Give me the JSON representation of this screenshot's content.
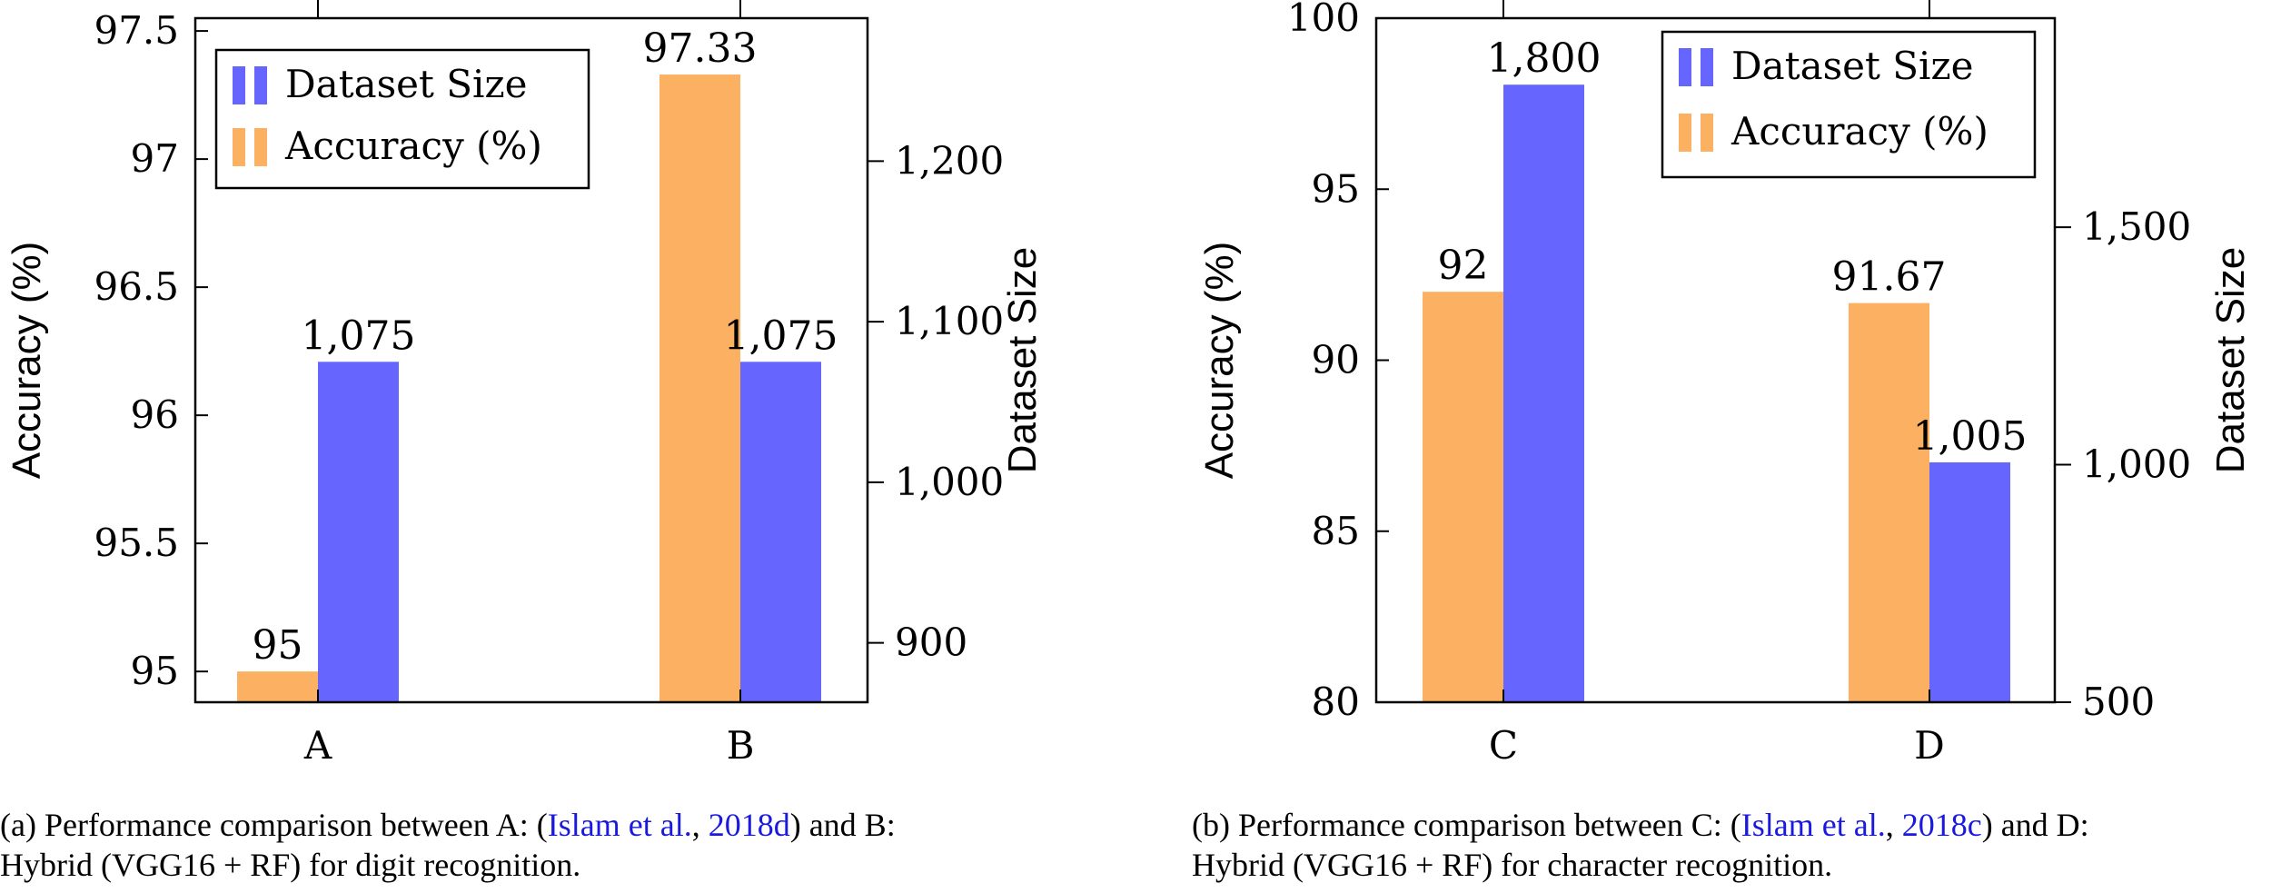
{
  "colors": {
    "accuracy": "#fbb062",
    "dataset": "#6666ff"
  },
  "chart_data": [
    {
      "type": "bar",
      "categories": [
        "A",
        "B"
      ],
      "series": [
        {
          "name": "Accuracy (%)",
          "axis": "left",
          "values": [
            95,
            97.33
          ],
          "labels": [
            "95",
            "97.33"
          ]
        },
        {
          "name": "Dataset Size",
          "axis": "right",
          "values": [
            1075,
            1075
          ],
          "labels": [
            "1,075",
            "1,075"
          ]
        }
      ],
      "ylabel": "Accuracy (%)",
      "y2label": "Dataset Size",
      "ylim": [
        94.88,
        97.55
      ],
      "y2lim": [
        863,
        1289
      ],
      "yticks": [
        "95",
        "95.5",
        "96",
        "96.5",
        "97",
        "97.5"
      ],
      "y2ticks": [
        "900",
        "1,000",
        "1,100",
        "1,200"
      ],
      "legend": [
        "Dataset Size",
        "Accuracy (%)"
      ],
      "legend_position": "top-left"
    },
    {
      "type": "bar",
      "categories": [
        "C",
        "D"
      ],
      "series": [
        {
          "name": "Accuracy (%)",
          "axis": "left",
          "values": [
            92,
            91.67
          ],
          "labels": [
            "92",
            "91.67"
          ]
        },
        {
          "name": "Dataset Size",
          "axis": "right",
          "values": [
            1800,
            1005
          ],
          "labels": [
            "1,800",
            "1,005"
          ]
        }
      ],
      "ylabel": "Accuracy (%)",
      "y2label": "Dataset Size",
      "ylim": [
        80,
        100
      ],
      "y2lim": [
        500,
        1940
      ],
      "yticks": [
        "80",
        "85",
        "90",
        "95",
        "100"
      ],
      "y2ticks": [
        "500",
        "1,000",
        "1,500"
      ],
      "legend": [
        "Dataset Size",
        "Accuracy (%)"
      ],
      "legend_position": "top-right"
    }
  ],
  "captions": [
    {
      "prefix": "(a) Performance comparison between A: (",
      "cite_author": "Islam et al.",
      "sep": ", ",
      "cite_year": "2018d",
      "suffix": ") and B:",
      "line2": "Hybrid (VGG16 + RF) for digit recognition."
    },
    {
      "prefix": "(b) Performance comparison between C: (",
      "cite_author": "Islam et al.",
      "sep": ", ",
      "cite_year": "2018c",
      "suffix": ") and D:",
      "line2": "Hybrid (VGG16 + RF) for character recognition."
    }
  ]
}
